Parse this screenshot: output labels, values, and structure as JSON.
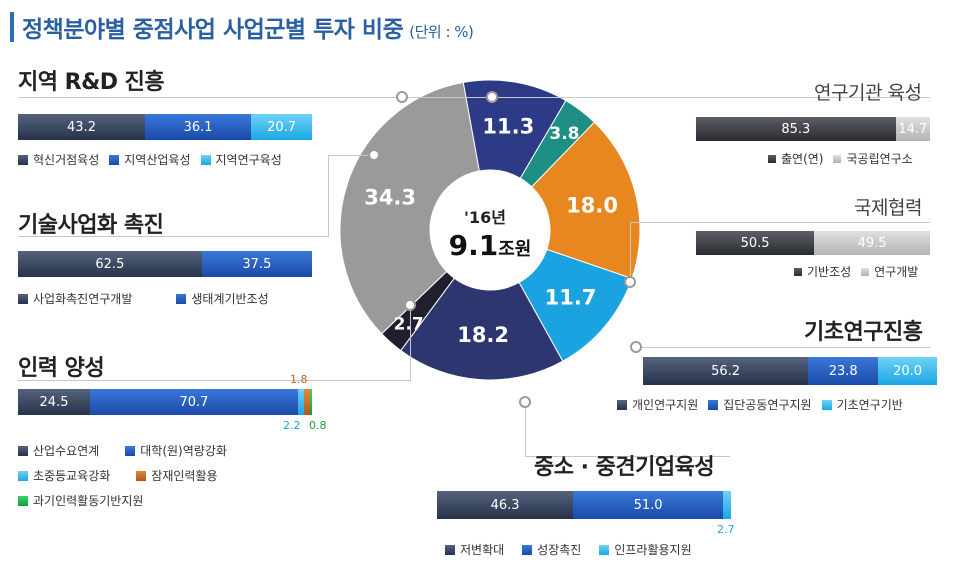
{
  "title": "정책분야별 중점사업 사업군별 투자 비중",
  "unit": "(단위 : %)",
  "center": {
    "year": "'16년",
    "amount": "9.1",
    "amount_unit": "조원"
  },
  "colors": {
    "navy": "#27324a",
    "blue": "#1a4aa8",
    "cyan": "#1aa6e3",
    "orange": "#c0621c",
    "green": "#12a03b",
    "dark": "#2a2c31",
    "grey": "#b3b3b3"
  },
  "chart_data": [
    {
      "type": "pie",
      "title": "",
      "categories": [
        "지역 R&D 진흥",
        "기술사업화 촉진",
        "인력 양성",
        "중소 · 중견기업육성",
        "기초연구진흥",
        "연구기관 육성",
        "국제협력"
      ],
      "values": [
        11.3,
        3.8,
        18.0,
        11.7,
        18.2,
        2.7,
        34.3
      ],
      "labels": [
        "11.3",
        "3.8",
        "18.0",
        "11.7",
        "18.2",
        "2.7",
        "34.3"
      ]
    },
    {
      "type": "bar",
      "title": "지역 R&D 진흥",
      "categories": [
        "지역 R&D 진흥"
      ],
      "series": [
        {
          "name": "혁신거점육성",
          "values": [
            43.2
          ],
          "label": "43.2"
        },
        {
          "name": "지역산업육성",
          "values": [
            36.1
          ],
          "label": "36.1"
        },
        {
          "name": "지역연구육성",
          "values": [
            20.7
          ],
          "label": "20.7"
        }
      ]
    },
    {
      "type": "bar",
      "title": "기술사업화 촉진",
      "categories": [
        "기술사업화 촉진"
      ],
      "series": [
        {
          "name": "사업화촉진연구개발",
          "values": [
            62.5
          ],
          "label": "62.5"
        },
        {
          "name": "생태계기반조성",
          "values": [
            37.5
          ],
          "label": "37.5"
        }
      ]
    },
    {
      "type": "bar",
      "title": "인력 양성",
      "categories": [
        "인력 양성"
      ],
      "series": [
        {
          "name": "산업수요연계",
          "values": [
            24.5
          ],
          "label": "24.5"
        },
        {
          "name": "대학(원)역량강화",
          "values": [
            70.7
          ],
          "label": "70.7"
        },
        {
          "name": "초중등교육강화",
          "values": [
            2.2
          ],
          "label": "2.2"
        },
        {
          "name": "잠재인력활용",
          "values": [
            1.8
          ],
          "label": "1.8"
        },
        {
          "name": "과기인력활동기반지원",
          "values": [
            0.8
          ],
          "label": "0.8"
        }
      ]
    },
    {
      "type": "bar",
      "title": "중소 · 중견기업육성",
      "categories": [
        "중소 · 중견기업육성"
      ],
      "series": [
        {
          "name": "저변확대",
          "values": [
            46.3
          ],
          "label": "46.3"
        },
        {
          "name": "성장촉진",
          "values": [
            51.0
          ],
          "label": "51.0"
        },
        {
          "name": "인프라활용지원",
          "values": [
            2.7
          ],
          "label": "2.7"
        }
      ]
    },
    {
      "type": "bar",
      "title": "기초연구진흥",
      "categories": [
        "기초연구진흥"
      ],
      "series": [
        {
          "name": "개인연구지원",
          "values": [
            56.2
          ],
          "label": "56.2"
        },
        {
          "name": "집단공동연구지원",
          "values": [
            23.8
          ],
          "label": "23.8"
        },
        {
          "name": "기초연구기반",
          "values": [
            20.0
          ],
          "label": "20.0"
        }
      ]
    },
    {
      "type": "bar",
      "title": "연구기관 육성",
      "categories": [
        "연구기관 육성"
      ],
      "series": [
        {
          "name": "출연(연)",
          "values": [
            85.3
          ],
          "label": "85.3"
        },
        {
          "name": "국공립연구소",
          "values": [
            14.7
          ],
          "label": "14.7"
        }
      ]
    },
    {
      "type": "bar",
      "title": "국제협력",
      "categories": [
        "국제협력"
      ],
      "series": [
        {
          "name": "기반조성",
          "values": [
            50.5
          ],
          "label": "50.5"
        },
        {
          "name": "연구개발",
          "values": [
            49.5
          ],
          "label": "49.5"
        }
      ]
    }
  ]
}
